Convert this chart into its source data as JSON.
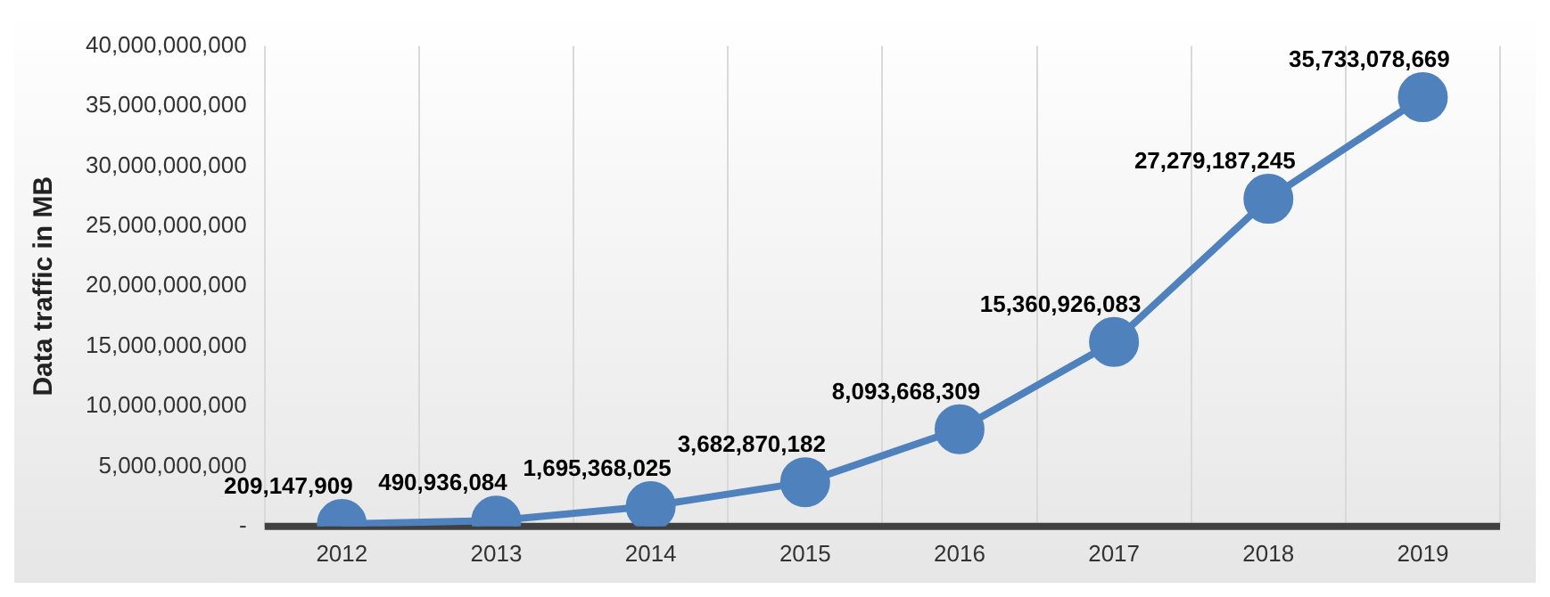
{
  "chart_data": {
    "type": "line",
    "ylabel": "Data traffic in MB",
    "categories": [
      "2012",
      "2013",
      "2014",
      "2015",
      "2016",
      "2017",
      "2018",
      "2019"
    ],
    "series": [
      {
        "color": "#4f81bd",
        "values": [
          209147909,
          490936084,
          1695368025,
          3682870182,
          8093668309,
          15360926083,
          27279187245,
          35733078669
        ],
        "value_labels": [
          "209,147,909",
          "490,936,084",
          "1,695,368,025",
          "3,682,870,182",
          "8,093,668,309",
          "15,360,926,083",
          "27,279,187,245",
          "35,733,078,669"
        ]
      }
    ],
    "ylim": [
      0,
      40000000000
    ],
    "yticks": [
      {
        "value": 0,
        "label": "-"
      },
      {
        "value": 5000000000,
        "label": "5,000,000,000"
      },
      {
        "value": 10000000000,
        "label": "10,000,000,000"
      },
      {
        "value": 15000000000,
        "label": "15,000,000,000"
      },
      {
        "value": 20000000000,
        "label": "20,000,000,000"
      },
      {
        "value": 25000000000,
        "label": "25,000,000,000"
      },
      {
        "value": 30000000000,
        "label": "30,000,000,000"
      },
      {
        "value": 35000000000,
        "label": "35,000,000,000"
      },
      {
        "value": 40000000000,
        "label": "40,000,000,000"
      }
    ],
    "grid": "x",
    "legend": false,
    "marker": "circle",
    "line_style": "solid"
  }
}
